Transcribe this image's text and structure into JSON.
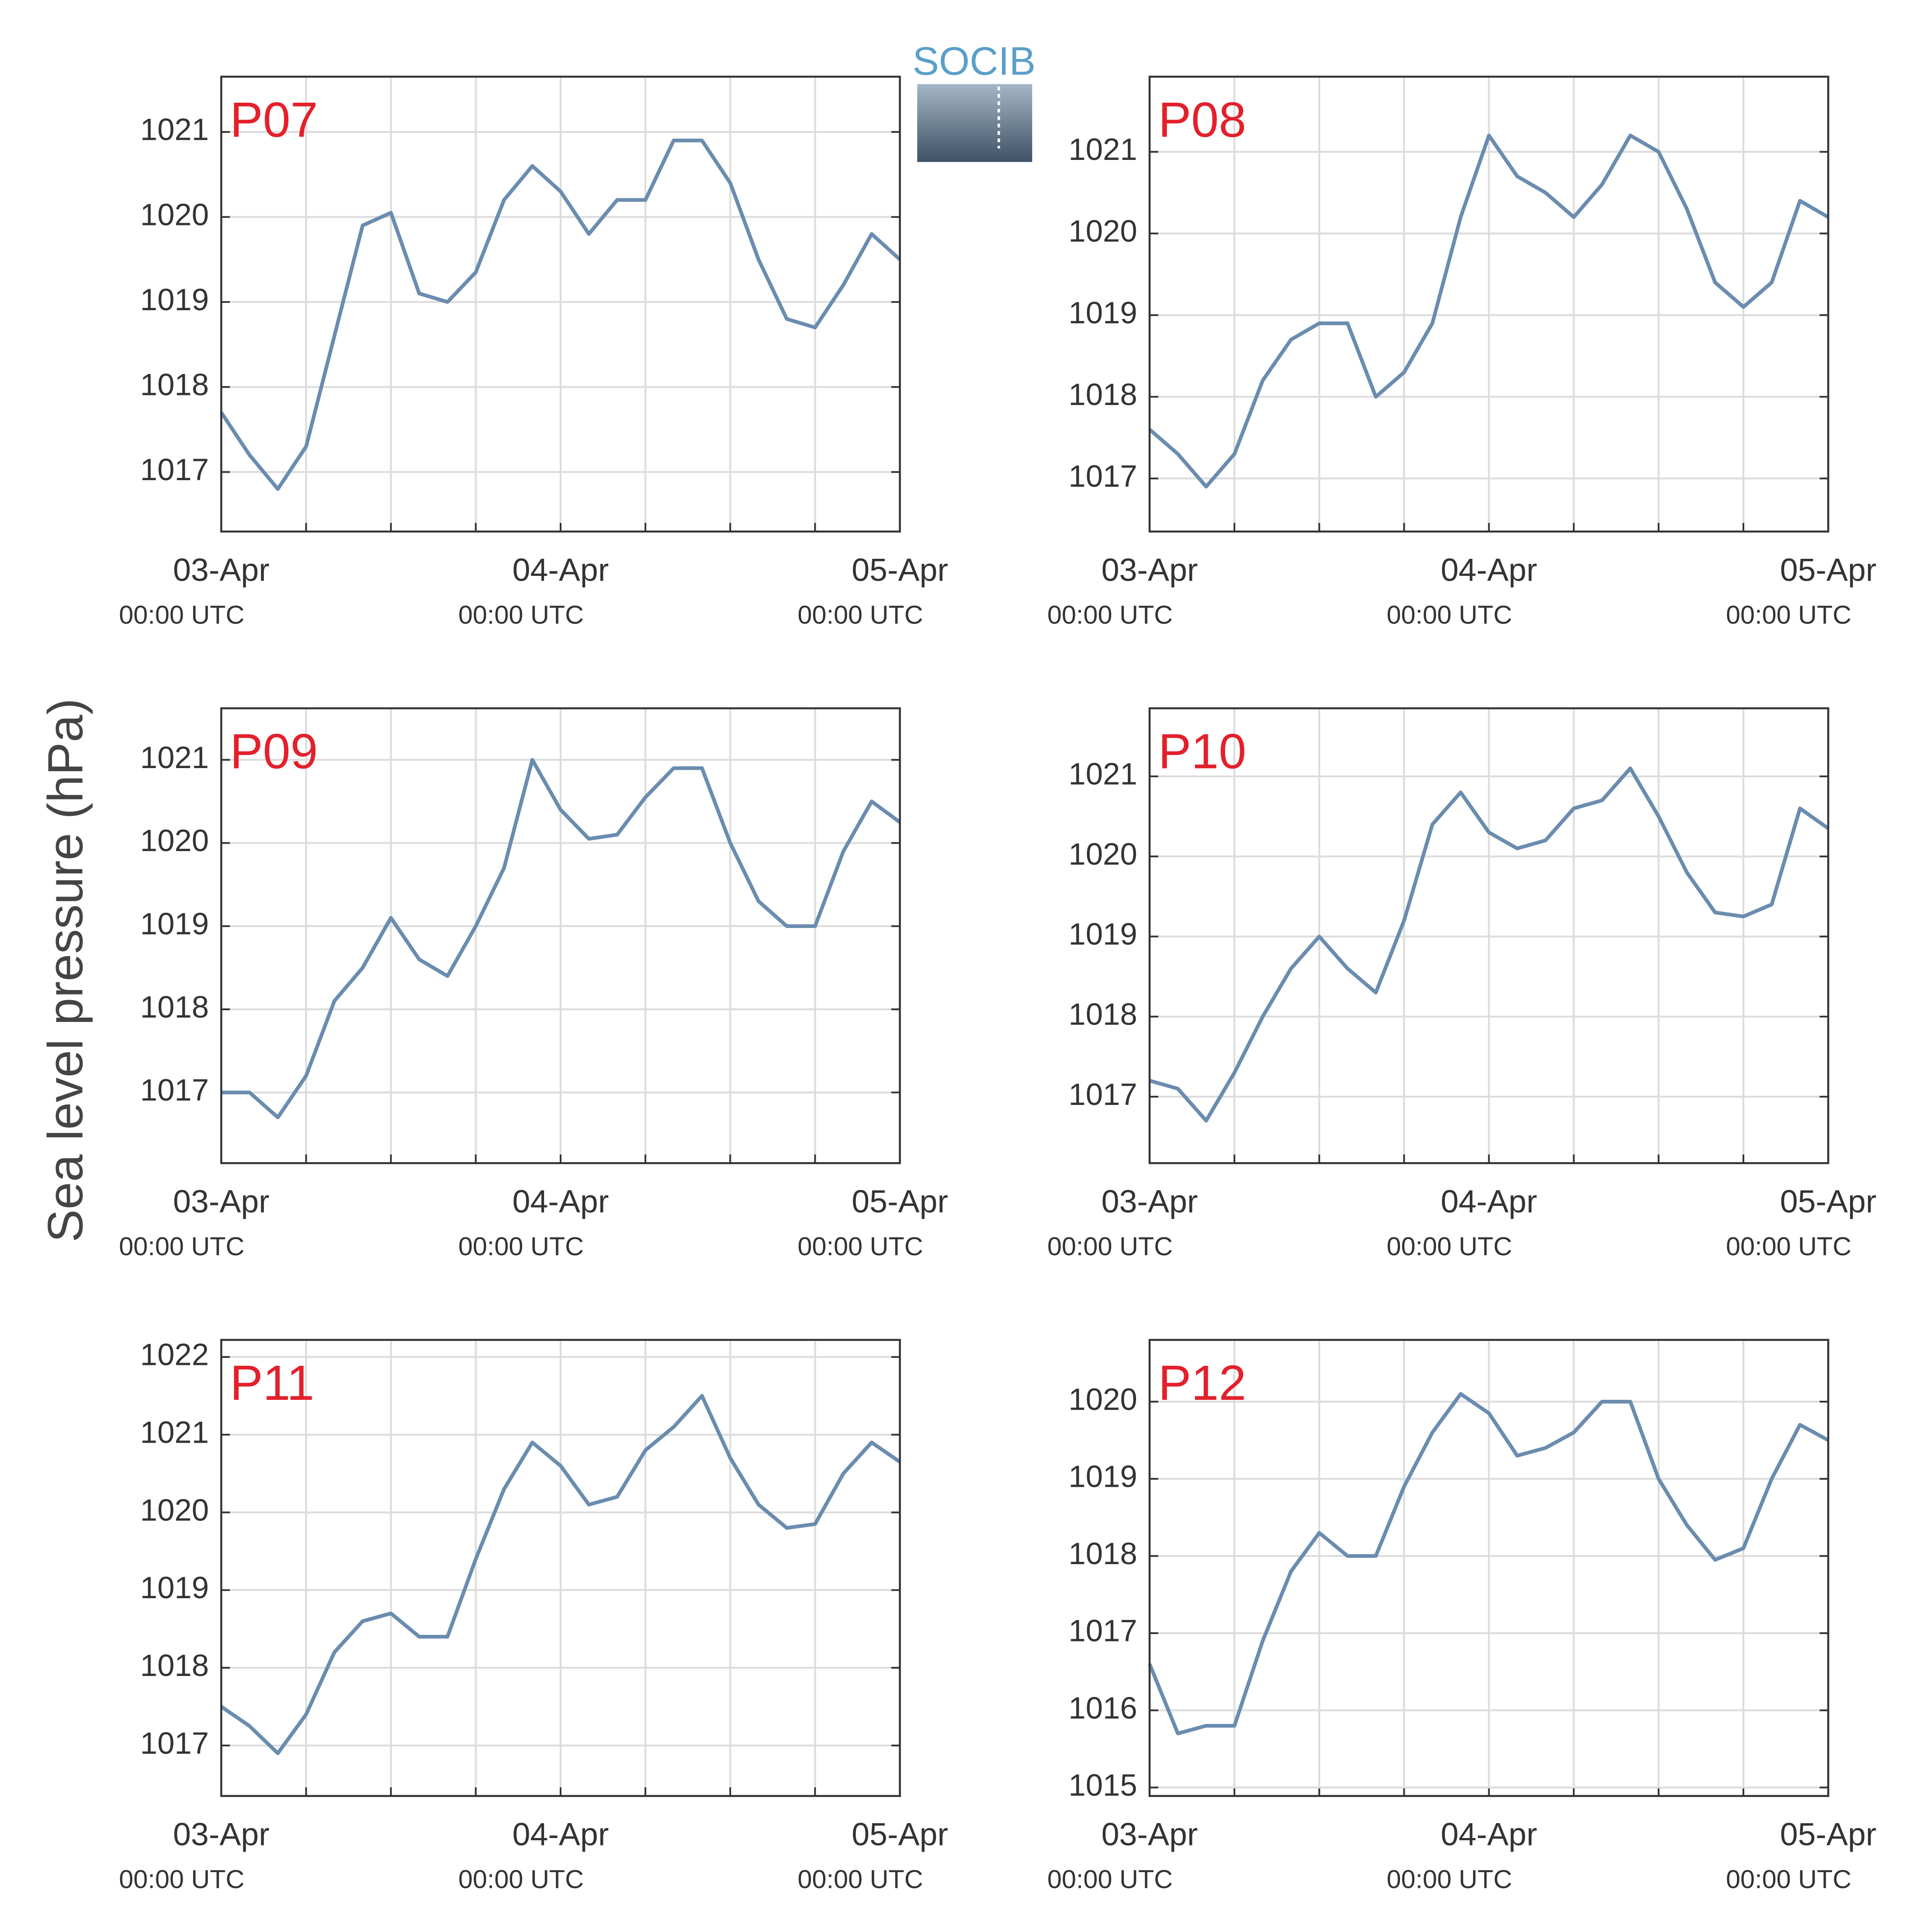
{
  "ylabel": "Sea level pressure (hPa)",
  "logo": {
    "text": "SOCIB"
  },
  "chart_data": [
    {
      "type": "line",
      "title": "P07",
      "color": "#6a8caf",
      "x": [
        "03-Apr 00:00",
        "03-Apr 02:00",
        "03-Apr 04:00",
        "03-Apr 06:00",
        "03-Apr 08:00",
        "03-Apr 10:00",
        "03-Apr 12:00",
        "03-Apr 14:00",
        "03-Apr 16:00",
        "03-Apr 18:00",
        "03-Apr 20:00",
        "03-Apr 22:00",
        "04-Apr 00:00",
        "04-Apr 02:00",
        "04-Apr 04:00",
        "04-Apr 06:00",
        "04-Apr 08:00",
        "04-Apr 10:00",
        "04-Apr 12:00",
        "04-Apr 14:00",
        "04-Apr 16:00",
        "04-Apr 18:00",
        "04-Apr 20:00",
        "04-Apr 22:00",
        "05-Apr 00:00"
      ],
      "series": [
        {
          "name": "P07",
          "color": "#6a8caf",
          "values": [
            1017.7,
            1017.2,
            1016.8,
            1017.3,
            1018.6,
            1019.9,
            1020.05,
            1019.1,
            1019.0,
            1019.35,
            1020.2,
            1020.6,
            1020.3,
            1019.8,
            1020.2,
            1020.2,
            1020.9,
            1020.9,
            1020.4,
            1019.5,
            1018.8,
            1018.7,
            1019.2,
            1019.8,
            1019.5
          ]
        }
      ],
      "xlim": [
        "03-Apr 00:00",
        "05-Apr 00:00"
      ],
      "xticks": [
        {
          "value": "03-Apr 00:00",
          "label": "03-Apr",
          "sublabel": "00:00 UTC"
        },
        {
          "value": "04-Apr 00:00",
          "label": "04-Apr",
          "sublabel": "00:00 UTC"
        },
        {
          "value": "05-Apr 00:00",
          "label": "05-Apr",
          "sublabel": "00:00 UTC"
        }
      ],
      "minor_xticks": [
        "03-Apr 06:00",
        "03-Apr 12:00",
        "03-Apr 18:00",
        "04-Apr 06:00",
        "04-Apr 12:00",
        "04-Apr 18:00"
      ],
      "ylim": [
        1016.3,
        1021.65
      ],
      "yticks": [
        1017,
        1018,
        1019,
        1020,
        1021
      ],
      "grid": true
    },
    {
      "type": "line",
      "title": "P08",
      "color": "#6a8caf",
      "x": [
        "03-Apr 00:00",
        "03-Apr 02:00",
        "03-Apr 04:00",
        "03-Apr 06:00",
        "03-Apr 08:00",
        "03-Apr 10:00",
        "03-Apr 12:00",
        "03-Apr 14:00",
        "03-Apr 16:00",
        "03-Apr 18:00",
        "03-Apr 20:00",
        "03-Apr 22:00",
        "04-Apr 00:00",
        "04-Apr 02:00",
        "04-Apr 04:00",
        "04-Apr 06:00",
        "04-Apr 08:00",
        "04-Apr 10:00",
        "04-Apr 12:00",
        "04-Apr 14:00",
        "04-Apr 16:00",
        "04-Apr 18:00",
        "04-Apr 20:00",
        "04-Apr 22:00",
        "05-Apr 00:00"
      ],
      "series": [
        {
          "name": "P08",
          "color": "#6a8caf",
          "values": [
            1017.6,
            1017.3,
            1016.9,
            1017.3,
            1018.2,
            1018.7,
            1018.9,
            1018.9,
            1018.0,
            1018.3,
            1018.9,
            1020.2,
            1021.2,
            1020.7,
            1020.5,
            1020.2,
            1020.6,
            1021.2,
            1021.0,
            1020.3,
            1019.4,
            1019.1,
            1019.4,
            1020.4,
            1020.2
          ]
        }
      ],
      "xlim": [
        "03-Apr 00:00",
        "05-Apr 00:00"
      ],
      "xticks": [
        {
          "value": "03-Apr 00:00",
          "label": "03-Apr",
          "sublabel": "00:00 UTC"
        },
        {
          "value": "04-Apr 00:00",
          "label": "04-Apr",
          "sublabel": "00:00 UTC"
        },
        {
          "value": "05-Apr 00:00",
          "label": "05-Apr",
          "sublabel": "00:00 UTC"
        }
      ],
      "minor_xticks": [
        "03-Apr 06:00",
        "03-Apr 12:00",
        "03-Apr 18:00",
        "04-Apr 06:00",
        "04-Apr 12:00",
        "04-Apr 18:00"
      ],
      "ylim": [
        1016.35,
        1021.92
      ],
      "yticks": [
        1017,
        1018,
        1019,
        1020,
        1021
      ],
      "grid": true
    },
    {
      "type": "line",
      "title": "P09",
      "color": "#6a8caf",
      "x": [
        "03-Apr 00:00",
        "03-Apr 02:00",
        "03-Apr 04:00",
        "03-Apr 06:00",
        "03-Apr 08:00",
        "03-Apr 10:00",
        "03-Apr 12:00",
        "03-Apr 14:00",
        "03-Apr 16:00",
        "03-Apr 18:00",
        "03-Apr 20:00",
        "03-Apr 22:00",
        "04-Apr 00:00",
        "04-Apr 02:00",
        "04-Apr 04:00",
        "04-Apr 06:00",
        "04-Apr 08:00",
        "04-Apr 10:00",
        "04-Apr 12:00",
        "04-Apr 14:00",
        "04-Apr 16:00",
        "04-Apr 18:00",
        "04-Apr 20:00",
        "04-Apr 22:00",
        "05-Apr 00:00"
      ],
      "series": [
        {
          "name": "P09",
          "color": "#6a8caf",
          "values": [
            1017.0,
            1017.0,
            1016.7,
            1017.2,
            1018.1,
            1018.5,
            1019.1,
            1018.6,
            1018.4,
            1019.0,
            1019.7,
            1021.0,
            1020.4,
            1020.05,
            1020.1,
            1020.55,
            1020.9,
            1020.9,
            1020.0,
            1019.3,
            1019.0,
            1019.0,
            1019.9,
            1020.5,
            1020.25
          ]
        }
      ],
      "xlim": [
        "03-Apr 00:00",
        "05-Apr 00:00"
      ],
      "xticks": [
        {
          "value": "03-Apr 00:00",
          "label": "03-Apr",
          "sublabel": "00:00 UTC"
        },
        {
          "value": "04-Apr 00:00",
          "label": "04-Apr",
          "sublabel": "00:00 UTC"
        },
        {
          "value": "05-Apr 00:00",
          "label": "05-Apr",
          "sublabel": "00:00 UTC"
        }
      ],
      "minor_xticks": [
        "03-Apr 06:00",
        "03-Apr 12:00",
        "03-Apr 18:00",
        "04-Apr 06:00",
        "04-Apr 12:00",
        "04-Apr 18:00"
      ],
      "ylim": [
        1016.15,
        1021.62
      ],
      "yticks": [
        1017,
        1018,
        1019,
        1020,
        1021
      ],
      "grid": true
    },
    {
      "type": "line",
      "title": "P10",
      "color": "#6a8caf",
      "x": [
        "03-Apr 00:00",
        "03-Apr 02:00",
        "03-Apr 04:00",
        "03-Apr 06:00",
        "03-Apr 08:00",
        "03-Apr 10:00",
        "03-Apr 12:00",
        "03-Apr 14:00",
        "03-Apr 16:00",
        "03-Apr 18:00",
        "03-Apr 20:00",
        "03-Apr 22:00",
        "04-Apr 00:00",
        "04-Apr 02:00",
        "04-Apr 04:00",
        "04-Apr 06:00",
        "04-Apr 08:00",
        "04-Apr 10:00",
        "04-Apr 12:00",
        "04-Apr 14:00",
        "04-Apr 16:00",
        "04-Apr 18:00",
        "04-Apr 20:00",
        "04-Apr 22:00",
        "05-Apr 00:00"
      ],
      "series": [
        {
          "name": "P10",
          "color": "#6a8caf",
          "values": [
            1017.2,
            1017.1,
            1016.7,
            1017.3,
            1018.0,
            1018.6,
            1019.0,
            1018.6,
            1018.3,
            1019.2,
            1020.4,
            1020.8,
            1020.3,
            1020.1,
            1020.2,
            1020.6,
            1020.7,
            1021.1,
            1020.5,
            1019.8,
            1019.3,
            1019.25,
            1019.4,
            1020.6,
            1020.35
          ]
        }
      ],
      "xlim": [
        "03-Apr 00:00",
        "05-Apr 00:00"
      ],
      "xticks": [
        {
          "value": "03-Apr 00:00",
          "label": "03-Apr",
          "sublabel": "00:00 UTC"
        },
        {
          "value": "04-Apr 00:00",
          "label": "04-Apr",
          "sublabel": "00:00 UTC"
        },
        {
          "value": "05-Apr 00:00",
          "label": "05-Apr",
          "sublabel": "00:00 UTC"
        }
      ],
      "minor_xticks": [
        "03-Apr 06:00",
        "03-Apr 12:00",
        "03-Apr 18:00",
        "04-Apr 06:00",
        "04-Apr 12:00",
        "04-Apr 18:00"
      ],
      "ylim": [
        1016.17,
        1021.85
      ],
      "yticks": [
        1017,
        1018,
        1019,
        1020,
        1021
      ],
      "grid": true
    },
    {
      "type": "line",
      "title": "P11",
      "color": "#6a8caf",
      "x": [
        "03-Apr 00:00",
        "03-Apr 02:00",
        "03-Apr 04:00",
        "03-Apr 06:00",
        "03-Apr 08:00",
        "03-Apr 10:00",
        "03-Apr 12:00",
        "03-Apr 14:00",
        "03-Apr 16:00",
        "03-Apr 18:00",
        "03-Apr 20:00",
        "03-Apr 22:00",
        "04-Apr 00:00",
        "04-Apr 02:00",
        "04-Apr 04:00",
        "04-Apr 06:00",
        "04-Apr 08:00",
        "04-Apr 10:00",
        "04-Apr 12:00",
        "04-Apr 14:00",
        "04-Apr 16:00",
        "04-Apr 18:00",
        "04-Apr 20:00",
        "04-Apr 22:00",
        "05-Apr 00:00"
      ],
      "series": [
        {
          "name": "P11",
          "color": "#6a8caf",
          "values": [
            1017.5,
            1017.25,
            1016.9,
            1017.4,
            1018.2,
            1018.6,
            1018.7,
            1018.4,
            1018.4,
            1019.4,
            1020.3,
            1020.9,
            1020.6,
            1020.1,
            1020.2,
            1020.8,
            1021.1,
            1021.5,
            1020.7,
            1020.1,
            1019.8,
            1019.85,
            1020.5,
            1020.9,
            1020.65
          ]
        }
      ],
      "xlim": [
        "03-Apr 00:00",
        "05-Apr 00:00"
      ],
      "xticks": [
        {
          "value": "03-Apr 00:00",
          "label": "03-Apr",
          "sublabel": "00:00 UTC"
        },
        {
          "value": "04-Apr 00:00",
          "label": "04-Apr",
          "sublabel": "00:00 UTC"
        },
        {
          "value": "05-Apr 00:00",
          "label": "05-Apr",
          "sublabel": "00:00 UTC"
        }
      ],
      "minor_xticks": [
        "03-Apr 06:00",
        "03-Apr 12:00",
        "03-Apr 18:00",
        "04-Apr 06:00",
        "04-Apr 12:00",
        "04-Apr 18:00"
      ],
      "ylim": [
        1016.35,
        1022.22
      ],
      "yticks": [
        1017,
        1018,
        1019,
        1020,
        1021,
        1022
      ],
      "grid": true
    },
    {
      "type": "line",
      "title": "P12",
      "color": "#6a8caf",
      "x": [
        "03-Apr 00:00",
        "03-Apr 02:00",
        "03-Apr 04:00",
        "03-Apr 06:00",
        "03-Apr 08:00",
        "03-Apr 10:00",
        "03-Apr 12:00",
        "03-Apr 14:00",
        "03-Apr 16:00",
        "03-Apr 18:00",
        "03-Apr 20:00",
        "03-Apr 22:00",
        "04-Apr 00:00",
        "04-Apr 02:00",
        "04-Apr 04:00",
        "04-Apr 06:00",
        "04-Apr 08:00",
        "04-Apr 10:00",
        "04-Apr 12:00",
        "04-Apr 14:00",
        "04-Apr 16:00",
        "04-Apr 18:00",
        "04-Apr 20:00",
        "04-Apr 22:00",
        "05-Apr 00:00"
      ],
      "series": [
        {
          "name": "P12",
          "color": "#6a8caf",
          "values": [
            1016.6,
            1015.7,
            1015.8,
            1015.8,
            1016.9,
            1017.8,
            1018.3,
            1018.0,
            1018.0,
            1018.9,
            1019.6,
            1020.1,
            1019.85,
            1019.3,
            1019.4,
            1019.6,
            1020.0,
            1020.0,
            1019.0,
            1018.4,
            1017.95,
            1018.1,
            1019.0,
            1019.7,
            1019.5
          ]
        }
      ],
      "xlim": [
        "03-Apr 00:00",
        "05-Apr 00:00"
      ],
      "xticks": [
        {
          "value": "03-Apr 00:00",
          "label": "03-Apr",
          "sublabel": "00:00 UTC"
        },
        {
          "value": "04-Apr 00:00",
          "label": "04-Apr",
          "sublabel": "00:00 UTC"
        },
        {
          "value": "05-Apr 00:00",
          "label": "05-Apr",
          "sublabel": "00:00 UTC"
        }
      ],
      "minor_xticks": [
        "03-Apr 06:00",
        "03-Apr 12:00",
        "03-Apr 18:00",
        "04-Apr 06:00",
        "04-Apr 12:00",
        "04-Apr 18:00"
      ],
      "ylim": [
        1014.89,
        1020.8
      ],
      "yticks": [
        1015,
        1016,
        1017,
        1018,
        1019,
        1020
      ],
      "grid": true
    }
  ]
}
